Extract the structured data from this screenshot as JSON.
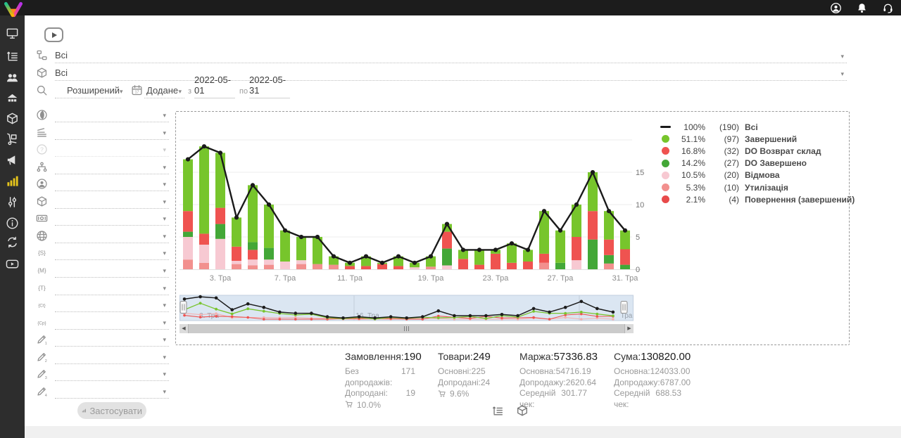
{
  "topbar": {
    "icons": [
      {
        "icon": "user",
        "name": "account"
      },
      {
        "icon": "bell",
        "name": "notifications"
      },
      {
        "icon": "support",
        "name": "support"
      }
    ]
  },
  "sidebar": {
    "items": [
      {
        "icon": "monitor",
        "name": "dashboard"
      },
      {
        "icon": "order-list",
        "name": "orders"
      },
      {
        "icon": "users",
        "name": "clients"
      },
      {
        "icon": "store",
        "name": "store"
      },
      {
        "icon": "package",
        "name": "products"
      },
      {
        "icon": "trolley",
        "name": "purchases"
      },
      {
        "icon": "megaphone",
        "name": "marketing"
      },
      {
        "icon": "stats",
        "name": "statistics",
        "active": true
      },
      {
        "icon": "sliders",
        "name": "settings"
      },
      {
        "icon": "info",
        "name": "info"
      },
      {
        "icon": "sync",
        "name": "sync"
      },
      {
        "icon": "video",
        "name": "video-tutorials"
      }
    ]
  },
  "filters": {
    "status_value": "Всі",
    "product_value": "Всі",
    "search_mode_value": "Розширений",
    "date_field_value": "Додане",
    "date_from_label": "з",
    "date_from": "2022-05-01",
    "date_to_label": "по",
    "date_to": "2022-05-31",
    "apply_label": "Застосувати",
    "selects": [
      {
        "icon": "globe-swirl",
        "name": "source",
        "value": ""
      },
      {
        "icon": "layers",
        "name": "priority",
        "value": ""
      },
      {
        "icon": "help",
        "name": "reason",
        "value": "",
        "disabled": true
      },
      {
        "icon": "sitemap",
        "name": "structure",
        "value": ""
      },
      {
        "icon": "user-circle",
        "name": "manager",
        "value": ""
      },
      {
        "icon": "package",
        "name": "product-filter",
        "value": ""
      },
      {
        "icon": "money",
        "name": "payment",
        "value": ""
      },
      {
        "icon": "globe",
        "name": "website",
        "value": ""
      },
      {
        "icon": "tag",
        "tag": "{S}",
        "name": "utm-source",
        "value": ""
      },
      {
        "icon": "tag",
        "tag": "{M}",
        "name": "utm-medium",
        "value": ""
      },
      {
        "icon": "tag",
        "tag": "{T}",
        "name": "utm-term",
        "value": ""
      },
      {
        "icon": "tag",
        "tag": "{Ct}",
        "name": "utm-content",
        "value": ""
      },
      {
        "icon": "tag",
        "tag": "{Cp}",
        "name": "utm-campaign",
        "value": ""
      },
      {
        "icon": "pencil",
        "num": "1",
        "name": "custom-field-1",
        "value": ""
      },
      {
        "icon": "pencil",
        "num": "2",
        "name": "custom-field-2",
        "value": ""
      },
      {
        "icon": "pencil",
        "num": "3",
        "name": "custom-field-3",
        "value": ""
      },
      {
        "icon": "pencil",
        "num": "4",
        "name": "custom-field-4",
        "value": ""
      }
    ]
  },
  "chart_data": {
    "type": "bar",
    "stacked": true,
    "overlay_line": {
      "name": "Всі",
      "color": "#1a1a1a"
    },
    "colors": {
      "g": "#77c52c",
      "r": "#ef5350",
      "G": "#43a737",
      "p": "#f7c9d2",
      "s": "#f2908e",
      "R": "#e84a4a"
    },
    "y_axis": {
      "side": "right",
      "ticks": [
        0,
        5,
        10,
        15
      ],
      "max": 20,
      "grid": true
    },
    "x_axis": {
      "unit": "день (Травень 2022)",
      "visible_ticks": [
        {
          "index": 2,
          "label": "3. Тра"
        },
        {
          "index": 6,
          "label": "7. Тра"
        },
        {
          "index": 10,
          "label": "11. Тра"
        },
        {
          "index": 15,
          "label": "19. Тра"
        },
        {
          "index": 19,
          "label": "23. Тра"
        },
        {
          "index": 23,
          "label": "27. Тра"
        },
        {
          "index": 27,
          "label": "31. Тра"
        }
      ]
    },
    "legend": [
      {
        "swatch": "line",
        "color": "#1a1a1a",
        "pct": "100%",
        "count": "(190)",
        "label": "Всі"
      },
      {
        "swatch": "dot",
        "color": "#77c52c",
        "pct": "51.1%",
        "count": "(97)",
        "label": "Завершений"
      },
      {
        "swatch": "dot",
        "color": "#ef5350",
        "pct": "16.8%",
        "count": "(32)",
        "label": "DO Возврат склад"
      },
      {
        "swatch": "dot",
        "color": "#43a737",
        "pct": "14.2%",
        "count": "(27)",
        "label": "DO Завершено"
      },
      {
        "swatch": "dot",
        "color": "#f7c9d2",
        "pct": "10.5%",
        "count": "(20)",
        "label": "Відмова"
      },
      {
        "swatch": "dot",
        "color": "#f2908e",
        "pct": "5.3%",
        "count": "(10)",
        "label": "Утилізація"
      },
      {
        "swatch": "dot",
        "color": "#e84a4a",
        "pct": "2.1%",
        "count": "(4)",
        "label": "Повернення (завершений)"
      }
    ],
    "bars": [
      {
        "day": "01",
        "total": 17,
        "stack": [
          [
            "s",
            1.5
          ],
          [
            "p",
            3.5
          ],
          [
            "G",
            0.8
          ],
          [
            "r",
            3.2
          ],
          [
            "g",
            8
          ]
        ]
      },
      {
        "day": "02",
        "total": 19,
        "stack": [
          [
            "s",
            1.0
          ],
          [
            "p",
            2.8
          ],
          [
            "r",
            1.7
          ],
          [
            "g",
            13.5
          ]
        ]
      },
      {
        "day": "03",
        "total": 18,
        "stack": [
          [
            "p",
            4.7
          ],
          [
            "G",
            2.3
          ],
          [
            "r",
            2.5
          ],
          [
            "g",
            8.5
          ]
        ]
      },
      {
        "day": "04",
        "total": 8,
        "stack": [
          [
            "s",
            0.8
          ],
          [
            "p",
            0.5
          ],
          [
            "r",
            2.2
          ],
          [
            "g",
            4.5
          ]
        ]
      },
      {
        "day": "05",
        "total": 13,
        "stack": [
          [
            "s",
            0.6
          ],
          [
            "p",
            0.9
          ],
          [
            "r",
            1.5
          ],
          [
            "G",
            1.2
          ],
          [
            "g",
            8.8
          ]
        ]
      },
      {
        "day": "06",
        "total": 10,
        "stack": [
          [
            "s",
            0.7
          ],
          [
            "p",
            0.8
          ],
          [
            "G",
            1.8
          ],
          [
            "g",
            6.7
          ]
        ]
      },
      {
        "day": "07",
        "total": 6,
        "stack": [
          [
            "p",
            1.2
          ],
          [
            "g",
            4.8
          ]
        ]
      },
      {
        "day": "08",
        "total": 5,
        "stack": [
          [
            "s",
            0.8
          ],
          [
            "p",
            0.6
          ],
          [
            "g",
            3.6
          ]
        ]
      },
      {
        "day": "09",
        "total": 5,
        "stack": [
          [
            "s",
            0.8
          ],
          [
            "g",
            4.2
          ]
        ]
      },
      {
        "day": "10",
        "total": 2,
        "stack": [
          [
            "s",
            0.7
          ],
          [
            "g",
            1.3
          ]
        ]
      },
      {
        "day": "11",
        "total": 1,
        "stack": [
          [
            "r",
            0.5
          ],
          [
            "g",
            0.5
          ]
        ]
      },
      {
        "day": "13",
        "total": 2,
        "stack": [
          [
            "r",
            0.5
          ],
          [
            "g",
            1.5
          ]
        ]
      },
      {
        "day": "15",
        "total": 1,
        "stack": [
          [
            "r",
            0.8
          ],
          [
            "g",
            0.2
          ]
        ]
      },
      {
        "day": "16",
        "total": 2,
        "stack": [
          [
            "r",
            0.5
          ],
          [
            "g",
            1.5
          ]
        ]
      },
      {
        "day": "17",
        "total": 1,
        "stack": [
          [
            "p",
            0.3
          ],
          [
            "g",
            0.7
          ]
        ]
      },
      {
        "day": "19",
        "total": 2,
        "stack": [
          [
            "s",
            0.4
          ],
          [
            "g",
            1.6
          ]
        ]
      },
      {
        "day": "20",
        "total": 7,
        "stack": [
          [
            "p",
            0.6
          ],
          [
            "G",
            2.6
          ],
          [
            "r",
            2.6
          ],
          [
            "g",
            1.2
          ]
        ]
      },
      {
        "day": "21",
        "total": 3,
        "stack": [
          [
            "r",
            1.6
          ],
          [
            "g",
            1.4
          ]
        ]
      },
      {
        "day": "22",
        "total": 3,
        "stack": [
          [
            "r",
            0.7
          ],
          [
            "g",
            2.3
          ]
        ]
      },
      {
        "day": "23",
        "total": 3,
        "stack": [
          [
            "r",
            2.4
          ],
          [
            "g",
            0.6
          ]
        ]
      },
      {
        "day": "24",
        "total": 4,
        "stack": [
          [
            "r",
            1.0
          ],
          [
            "g",
            3.0
          ]
        ]
      },
      {
        "day": "25",
        "total": 3,
        "stack": [
          [
            "r",
            1.2
          ],
          [
            "g",
            1.8
          ]
        ]
      },
      {
        "day": "26",
        "total": 9,
        "stack": [
          [
            "s",
            1.0
          ],
          [
            "r",
            1.4
          ],
          [
            "g",
            6.6
          ]
        ]
      },
      {
        "day": "27",
        "total": 6,
        "stack": [
          [
            "G",
            1.0
          ],
          [
            "g",
            5.0
          ]
        ]
      },
      {
        "day": "28",
        "total": 10,
        "stack": [
          [
            "p",
            1.4
          ],
          [
            "r",
            3.6
          ],
          [
            "g",
            5.0
          ]
        ]
      },
      {
        "day": "29",
        "total": 15,
        "stack": [
          [
            "G",
            4.6
          ],
          [
            "r",
            4.4
          ],
          [
            "g",
            6.0
          ]
        ]
      },
      {
        "day": "30",
        "total": 9,
        "stack": [
          [
            "s",
            0.9
          ],
          [
            "G",
            1.3
          ],
          [
            "r",
            2.4
          ],
          [
            "g",
            4.4
          ]
        ]
      },
      {
        "day": "31",
        "total": 6,
        "stack": [
          [
            "G",
            0.7
          ],
          [
            "r",
            2.4
          ],
          [
            "g",
            2.9
          ]
        ]
      }
    ],
    "navigator": {
      "labels": [
        {
          "f": 0.065,
          "label": "3. Тра"
        },
        {
          "f": 0.414,
          "label": "16. Тра"
        },
        {
          "f": 0.985,
          "label": "Тра"
        }
      ]
    }
  },
  "summary": {
    "columns": [
      {
        "title": "Замовлення:",
        "value": "190",
        "rows": [
          {
            "label": "Без допродажів:",
            "value": "171"
          },
          {
            "label": "Допродані:",
            "value": "19"
          }
        ],
        "cart_pct": "10.0%"
      },
      {
        "title": "Товари:",
        "value": "249",
        "rows": [
          {
            "label": "Основні:",
            "value": "225"
          },
          {
            "label": "Допродані:",
            "value": "24"
          }
        ],
        "cart_pct": "9.6%"
      },
      {
        "title": "Маржа:",
        "value": "57336.83",
        "rows": [
          {
            "label": "Основна:",
            "value": "54716.19"
          },
          {
            "label": "Допродажу:",
            "value": "2620.64"
          },
          {
            "label": "Середній чек:",
            "value": "301.77"
          }
        ]
      },
      {
        "title": "Сума:",
        "value": "130820.00",
        "rows": [
          {
            "label": "Основна:",
            "value": "124033.00"
          },
          {
            "label": "Допродажу:",
            "value": "6787.00"
          },
          {
            "label": "Середній чек:",
            "value": "688.53"
          }
        ]
      }
    ]
  },
  "view_toggles": [
    {
      "icon": "order-list",
      "name": "orders-view"
    },
    {
      "icon": "package",
      "name": "products-view"
    }
  ]
}
